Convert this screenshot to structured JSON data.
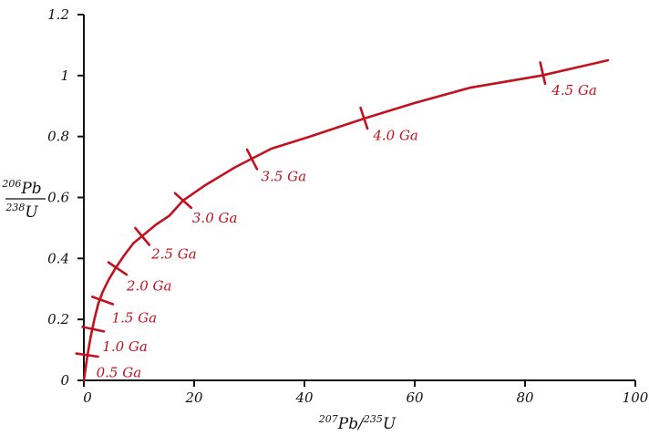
{
  "chart_data": {
    "type": "line",
    "title": "",
    "xlim": [
      0,
      100
    ],
    "ylim": [
      0,
      1.2
    ],
    "grid": false,
    "legend": "none",
    "color": "#c0121f",
    "x_ticks": [
      "0",
      "20",
      "40",
      "60",
      "80",
      "100"
    ],
    "y_ticks": [
      "0",
      "0.2",
      "0.4",
      "0.6",
      "0.8",
      "1",
      "1.2"
    ],
    "xlabel": {
      "mass1": "207",
      "elem1": "Pb",
      "sep": "/",
      "mass2": "235",
      "elem2": "U"
    },
    "ylabel": {
      "num_mass": "206",
      "num_elem": "Pb",
      "den_mass": "238",
      "den_elem": "U"
    },
    "series": [
      {
        "x": [
          0,
          0.6,
          1.2,
          1.9,
          2.6,
          3.4,
          4.5,
          5.8,
          7.3,
          9.0,
          11,
          13,
          15.5,
          18,
          22,
          27.5,
          34,
          41,
          51,
          60,
          70,
          83,
          95
        ],
        "y": [
          0,
          0.075,
          0.14,
          0.2,
          0.25,
          0.29,
          0.33,
          0.37,
          0.41,
          0.45,
          0.48,
          0.51,
          0.54,
          0.59,
          0.64,
          0.7,
          0.76,
          0.8,
          0.86,
          0.91,
          0.96,
          1.0,
          1.05
        ]
      }
    ],
    "age_marks": [
      {
        "label": "0.5 Ga",
        "x": 0.6,
        "y": 0.083
      },
      {
        "label": "1.0 Ga",
        "x": 1.7,
        "y": 0.168
      },
      {
        "label": "1.5 Ga",
        "x": 3.4,
        "y": 0.262
      },
      {
        "label": "2.0 Ga",
        "x": 6.1,
        "y": 0.367
      },
      {
        "label": "2.5 Ga",
        "x": 10.6,
        "y": 0.472
      },
      {
        "label": "3.0 Ga",
        "x": 18.0,
        "y": 0.59
      },
      {
        "label": "3.5 Ga",
        "x": 30.5,
        "y": 0.725
      },
      {
        "label": "4.0 Ga",
        "x": 50.8,
        "y": 0.86
      },
      {
        "label": "4.5 Ga",
        "x": 83.2,
        "y": 1.008
      }
    ]
  }
}
